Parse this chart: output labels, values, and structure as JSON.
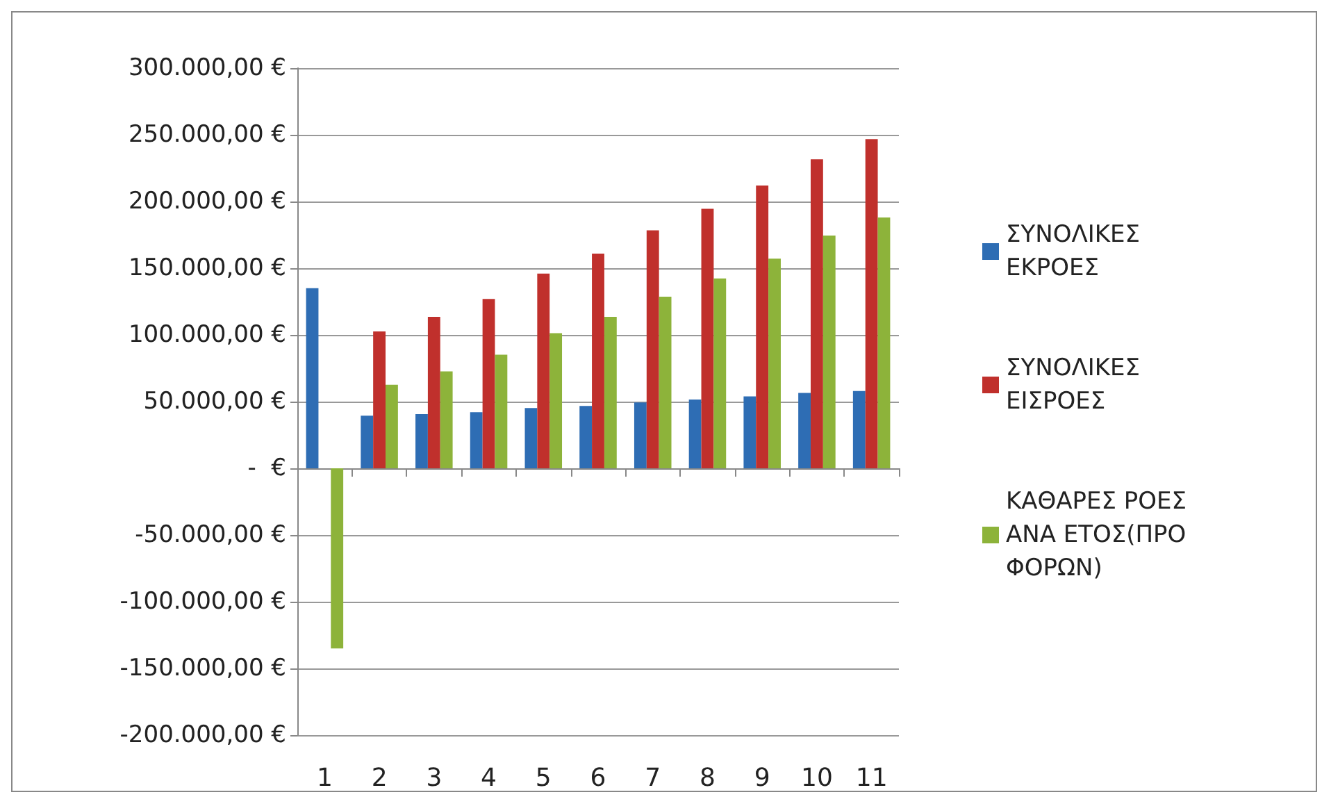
{
  "chart_data": {
    "type": "bar",
    "categories": [
      "1",
      "2",
      "3",
      "4",
      "5",
      "6",
      "7",
      "8",
      "9",
      "10",
      "11"
    ],
    "series": [
      {
        "name": "ΣΥΝΟΛΙΚΕΣ ΕΚΡΟΕΣ",
        "color": "#2e6db4",
        "values": [
          135000,
          39400,
          40600,
          42000,
          45200,
          46800,
          49400,
          51600,
          53900,
          56500,
          58000
        ]
      },
      {
        "name": "ΣΥΝΟΛΙΚΕΣ ΕΙΣΡΟΕΣ",
        "color": "#c0302c",
        "values": [
          null,
          102600,
          113500,
          127000,
          146000,
          161000,
          178400,
          194500,
          212000,
          231600,
          246800
        ]
      },
      {
        "name": "ΚΑΘΑΡΕΣ ΡΟΕΣ ΑΝΑ ΕΤΟΣ(ΠΡΟ ΦΟΡΩΝ)",
        "color": "#8db33a",
        "values": [
          -135000,
          62600,
          72600,
          85200,
          101300,
          113500,
          128700,
          142300,
          157100,
          174500,
          188000
        ]
      }
    ],
    "ylim": [
      -200000,
      300000
    ],
    "yticks": [
      {
        "value": -200000,
        "label": "-200.000,00 €"
      },
      {
        "value": -150000,
        "label": "-150.000,00 €"
      },
      {
        "value": -100000,
        "label": "-100.000,00 €"
      },
      {
        "value": -50000,
        "label": "-50.000,00 €"
      },
      {
        "value": 0,
        "label": "-  €"
      },
      {
        "value": 50000,
        "label": "50.000,00 €"
      },
      {
        "value": 100000,
        "label": "100.000,00 €"
      },
      {
        "value": 150000,
        "label": "150.000,00 €"
      },
      {
        "value": 200000,
        "label": "200.000,00 €"
      },
      {
        "value": 250000,
        "label": "250.000,00 €"
      },
      {
        "value": 300000,
        "label": "300.000,00 €"
      }
    ],
    "grid": "y",
    "legend": "right"
  }
}
